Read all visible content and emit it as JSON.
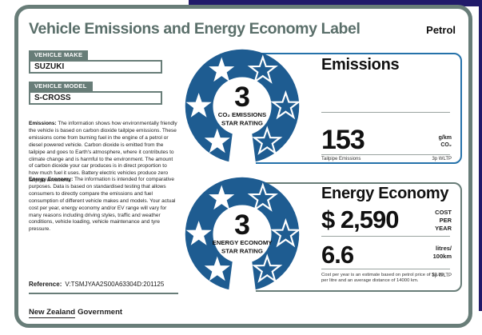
{
  "colors": {
    "navy": "#211a6a",
    "accent": "#687d78",
    "title": "#5a6f6a",
    "badge_blue": "#1e5c91",
    "panel_blue": "#2572aa"
  },
  "header": {
    "title": "Vehicle Emissions and Energy Economy Label",
    "fuel_type": "Petrol"
  },
  "vehicle": {
    "make_label": "VEHICLE MAKE",
    "make": "SUZUKI",
    "model_label": "VEHICLE MODEL",
    "model": "S-CROSS"
  },
  "info": {
    "emissions_heading": "Emissions:",
    "emissions_text": "The information shows how environmentally friendly the vehicle is based on carbon dioxide tailpipe emissions. These emissions come from burning fuel in the engine of a petrol or diesel powered vehicle. Carbon dioxide is emitted from the tailpipe and goes to Earth's atmosphere, where it contributes to climate change and is harmful to the environment. The amount of carbon dioxide your car produces is in direct proportion to how much fuel it uses. Battery electric vehicles produce zero tailpipe emissions.",
    "energy_heading": "Energy Economy:",
    "energy_text": "The information is intended for comparative purposes. Data is based on standardised testing that allows consumers to directly compare the emissions and fuel consumption of different vehicle makes and models. Your actual cost per year, energy economy and/or EV range will vary for many reasons including driving styles, traffic and weather conditions, vehicle loading, vehicle maintenance and tyre pressure."
  },
  "reference": {
    "label": "Reference:",
    "value": "V:TSMJYAA2S00A63304D:201125"
  },
  "footer": {
    "logo_part1": "New Zealand",
    "logo_part2": "Government"
  },
  "emissions_panel": {
    "title": "Emissions",
    "badge": {
      "rating": "3",
      "caption_line1": "CO₂ EMISSIONS",
      "caption_line2": "STAR RATING",
      "stars_filled": 3,
      "stars_total": 6
    },
    "value": "153",
    "unit_line1": "g/km",
    "unit_line2": "CO₂",
    "value_caption": "Tailpipe Emissions",
    "standard": "3p WLTP"
  },
  "energy_panel": {
    "title": "Energy Economy",
    "badge": {
      "rating": "3",
      "caption_line1": "ENERGY ECONOMY",
      "caption_line2": "STAR RATING",
      "stars_filled": 3,
      "stars_total": 6
    },
    "cost_value": "$ 2,590",
    "cost_unit": [
      "COST",
      "PER",
      "YEAR"
    ],
    "economy_value": "6.6",
    "economy_unit": [
      "litres/",
      "100km"
    ],
    "footnote": "Cost per year is an estimate based on petrol price of $2.80 per litre and an average distance of 14000 km.",
    "standard": "3p WLTP"
  }
}
